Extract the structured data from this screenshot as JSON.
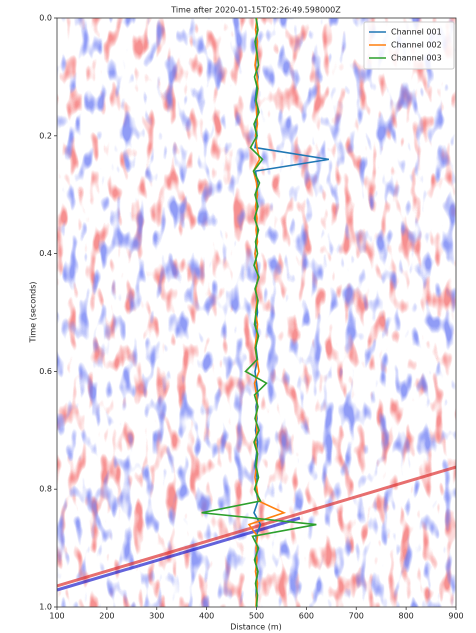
{
  "chart_data": {
    "type": "line",
    "title": "Time after 2020-01-15T02:26:49.598000Z",
    "xlabel": "Distance (m)",
    "ylabel": "Time (seconds)",
    "y": [
      0,
      0.02,
      0.04,
      0.06,
      0.08,
      0.1,
      0.12,
      0.14,
      0.16,
      0.18,
      0.2,
      0.22,
      0.24,
      0.26,
      0.28,
      0.3,
      0.32,
      0.34,
      0.36,
      0.38,
      0.4,
      0.42,
      0.44,
      0.46,
      0.48,
      0.5,
      0.52,
      0.54,
      0.56,
      0.58,
      0.6,
      0.62,
      0.64,
      0.66,
      0.68,
      0.7,
      0.72,
      0.74,
      0.76,
      0.78,
      0.8,
      0.82,
      0.84,
      0.86,
      0.88,
      0.9,
      0.92,
      0.94,
      0.96,
      0.98,
      1.0
    ],
    "series": [
      {
        "name": "Channel 001",
        "color": "#1f77b4",
        "values": [
          500,
          502,
          499,
          501,
          498,
          503,
          500,
          497,
          502,
          499,
          501,
          497,
          645,
          498,
          502,
          499,
          501,
          498,
          502,
          500,
          497,
          501,
          503,
          499,
          500,
          502,
          498,
          501,
          499,
          502,
          497,
          500,
          503,
          499,
          501,
          498,
          502,
          500,
          497,
          501,
          499,
          503,
          495,
          508,
          499,
          501,
          498,
          502,
          500,
          499,
          501
        ]
      },
      {
        "name": "Channel 002",
        "color": "#ff7f0e",
        "values": [
          501,
          498,
          502,
          500,
          497,
          501,
          503,
          499,
          500,
          502,
          498,
          501,
          506,
          494,
          500,
          502,
          498,
          501,
          499,
          502,
          497,
          500,
          503,
          499,
          501,
          498,
          502,
          500,
          497,
          501,
          505,
          496,
          500,
          502,
          499,
          501,
          498,
          502,
          500,
          497,
          501,
          504,
          555,
          485,
          502,
          499,
          501,
          498,
          502,
          500,
          499
        ]
      },
      {
        "name": "Channel 003",
        "color": "#2ca02c",
        "values": [
          499,
          503,
          497,
          501,
          504,
          496,
          502,
          499,
          505,
          495,
          501,
          488,
          512,
          494,
          506,
          497,
          503,
          496,
          504,
          498,
          502,
          495,
          505,
          497,
          503,
          499,
          496,
          504,
          498,
          501,
          478,
          520,
          496,
          503,
          497,
          505,
          495,
          502,
          499,
          504,
          496,
          508,
          390,
          620,
          492,
          504,
          496,
          503,
          498,
          502,
          500
        ]
      }
    ],
    "xlim": [
      100,
      900
    ],
    "xticks": [
      100,
      200,
      300,
      400,
      500,
      600,
      700,
      800,
      900
    ],
    "ylim": [
      0,
      1
    ],
    "y_inverted": true,
    "yticks": [
      {
        "value": 0,
        "label": "0.0"
      },
      0.2,
      0.4,
      0.6,
      0.8,
      {
        "value": 1,
        "label": "1.0"
      }
    ],
    "legend": "upper right"
  }
}
